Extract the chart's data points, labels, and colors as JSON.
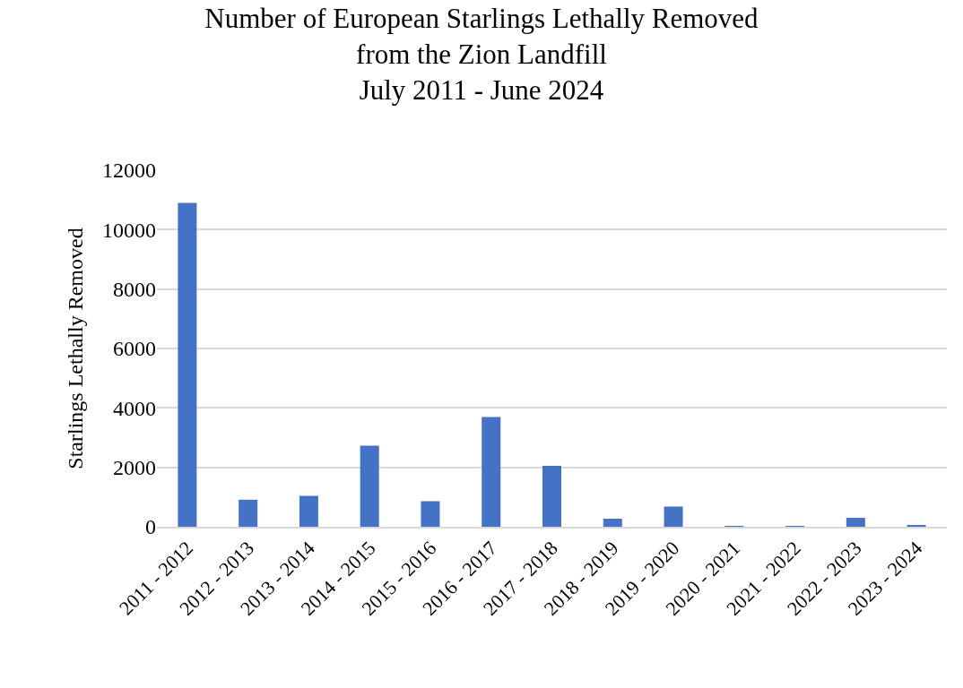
{
  "chart_data": {
    "type": "bar",
    "title": "Number of European Starlings Lethally Removed\nfrom the Zion Landfill\nJuly 2011 - June 2024",
    "ylabel": "Starlings Lethally Removed",
    "categories": [
      "2011 - 2012",
      "2012 - 2013",
      "2013 - 2014",
      "2014 - 2015",
      "2015 - 2016",
      "2016 - 2017",
      "2017 - 2018",
      "2018 - 2019",
      "2019 - 2020",
      "2020 - 2021",
      "2021 - 2022",
      "2022 - 2023",
      "2023 - 2024"
    ],
    "values": [
      10900,
      910,
      1040,
      2730,
      860,
      3690,
      2050,
      270,
      680,
      20,
      20,
      300,
      40
    ],
    "color": "#4472c4",
    "ylim": [
      0,
      12000
    ],
    "yticks": [
      0,
      2000,
      4000,
      6000,
      8000,
      10000,
      12000
    ],
    "grid": "y"
  }
}
